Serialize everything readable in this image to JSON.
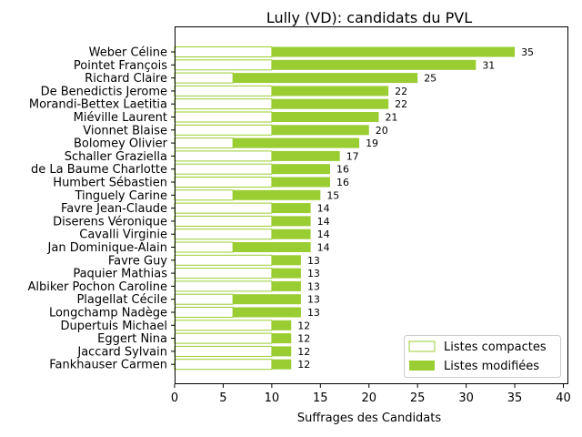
{
  "chart_data": {
    "type": "bar",
    "orientation": "horizontal",
    "stacked": true,
    "title": "Lully (VD): candidats du PVL",
    "xlabel": "Suffrages des Candidats",
    "ylabel": "",
    "xlim": [
      0,
      40
    ],
    "xticks": [
      0,
      5,
      10,
      15,
      20,
      25,
      30,
      35,
      40
    ],
    "legend_position": "lower-right",
    "colors": {
      "compactes_edge": "#9acd32",
      "modifiees_fill": "#9acd32"
    },
    "categories": [
      "Weber Céline",
      "Pointet François",
      "Richard Claire",
      "De Benedictis Jerome",
      "Morandi-Bettex Laetitia",
      "Miéville Laurent",
      "Vionnet Blaise",
      "Bolomey Olivier",
      "Schaller Graziella",
      "de La Baume Charlotte",
      "Humbert Sébastien",
      "Tinguely Carine",
      "Favre Jean-Claude",
      "Diserens Véronique",
      "Cavalli Virginie",
      "Jan Dominique-Alain",
      "Favre Guy",
      "Paquier Mathias",
      "Albiker Pochon Caroline",
      "Plagellat Cécile",
      "Longchamp Nadège",
      "Dupertuis Michael",
      "Eggert Nina",
      "Jaccard Sylvain",
      "Fankhauser Carmen"
    ],
    "series": [
      {
        "name": "Listes compactes",
        "values": [
          10,
          10,
          6,
          10,
          10,
          10,
          10,
          6,
          10,
          10,
          10,
          6,
          10,
          10,
          10,
          6,
          10,
          10,
          10,
          6,
          6,
          10,
          10,
          10,
          10
        ]
      },
      {
        "name": "Listes modifiées",
        "values": [
          25,
          21,
          19,
          12,
          12,
          11,
          10,
          13,
          7,
          6,
          6,
          9,
          4,
          4,
          4,
          8,
          3,
          3,
          3,
          7,
          7,
          2,
          2,
          2,
          2
        ]
      }
    ],
    "totals": [
      35,
      31,
      25,
      22,
      22,
      21,
      20,
      19,
      17,
      16,
      16,
      15,
      14,
      14,
      14,
      14,
      13,
      13,
      13,
      13,
      13,
      12,
      12,
      12,
      12
    ]
  }
}
